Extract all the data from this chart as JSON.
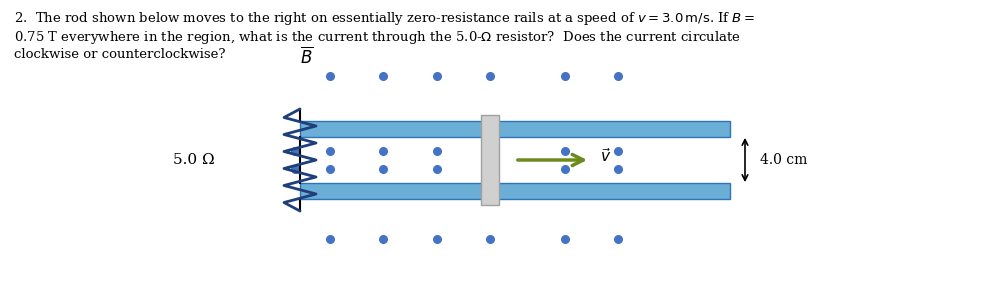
{
  "background_color": "#ffffff",
  "dot_color": "#4472C4",
  "rail_fill": "#6BAED6",
  "rail_edge": "#2E75B6",
  "rod_fill": "#D0D0D0",
  "rod_edge": "#A0A0A0",
  "resistor_color": "#1F3F7A",
  "box_color": "#000000",
  "arrow_color": "#6B8C1A",
  "text_color": "#000000",
  "resistor_label": "5.0 Ω",
  "velocity_label": "$\\vec{v}$",
  "dim_label": "4.0 cm",
  "B_label": "$\\overline{B}$",
  "fig_width": 10.0,
  "fig_height": 3.04,
  "dpi": 100,
  "question_lines": [
    "2.  The rod shown below moves to the right on essentially zero-resistance rails at a speed of $v = 3.0\\,\\mathrm{m/s}$. If $B =$",
    "0.75 T everywhere in the region, what is the current through the 5.0-$\\Omega$ resistor?  Does the current circulate",
    "clockwise or counterclockwise?"
  ]
}
